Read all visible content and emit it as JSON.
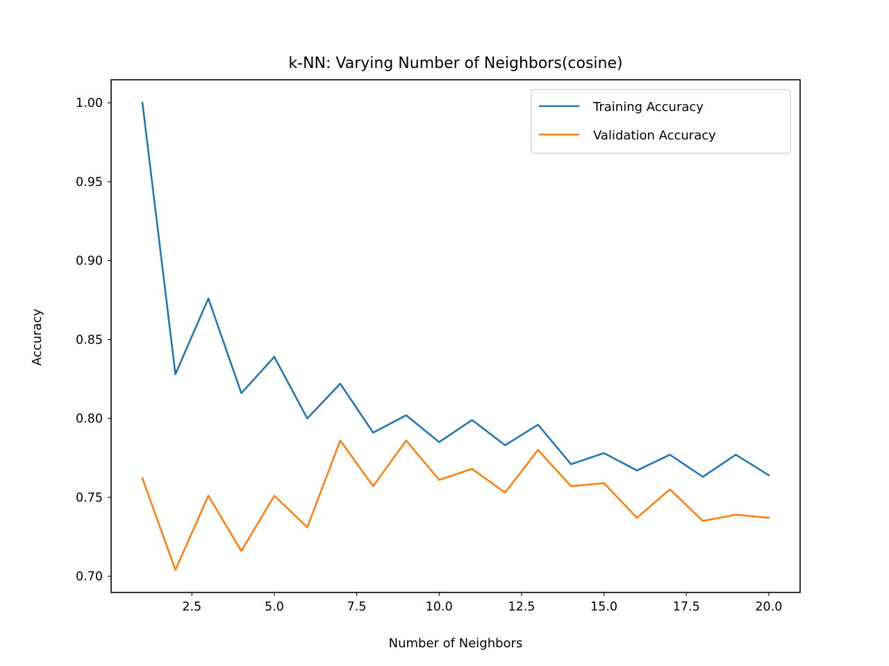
{
  "chart_data": {
    "type": "line",
    "title": "k-NN: Varying Number of Neighbors(cosine)",
    "xlabel": "Number of Neighbors",
    "ylabel": "Accuracy",
    "xlim": [
      0.05,
      20.95
    ],
    "ylim": [
      0.6897,
      1.0146
    ],
    "xticks": [
      2.5,
      5.0,
      7.5,
      10.0,
      12.5,
      15.0,
      17.5,
      20.0
    ],
    "xtick_labels": [
      "2.5",
      "5.0",
      "7.5",
      "10.0",
      "12.5",
      "15.0",
      "17.5",
      "20.0"
    ],
    "yticks": [
      0.7,
      0.75,
      0.8,
      0.85,
      0.9,
      0.95,
      1.0
    ],
    "ytick_labels": [
      "0.70",
      "0.75",
      "0.80",
      "0.85",
      "0.90",
      "0.95",
      "1.00"
    ],
    "grid": false,
    "legend_position": "top-right",
    "x": [
      1,
      2,
      3,
      4,
      5,
      6,
      7,
      8,
      9,
      10,
      11,
      12,
      13,
      14,
      15,
      16,
      17,
      18,
      19,
      20
    ],
    "series": [
      {
        "name": "Training Accuracy",
        "color": "#1f77b4",
        "values": [
          1.0,
          0.828,
          0.876,
          0.816,
          0.839,
          0.8,
          0.822,
          0.791,
          0.802,
          0.785,
          0.799,
          0.783,
          0.796,
          0.771,
          0.778,
          0.767,
          0.777,
          0.763,
          0.777,
          0.764
        ]
      },
      {
        "name": "Validation Accuracy",
        "color": "#ff7f0e",
        "values": [
          0.762,
          0.704,
          0.751,
          0.716,
          0.751,
          0.731,
          0.786,
          0.757,
          0.786,
          0.761,
          0.768,
          0.753,
          0.78,
          0.757,
          0.759,
          0.737,
          0.755,
          0.735,
          0.739,
          0.737
        ]
      }
    ]
  }
}
